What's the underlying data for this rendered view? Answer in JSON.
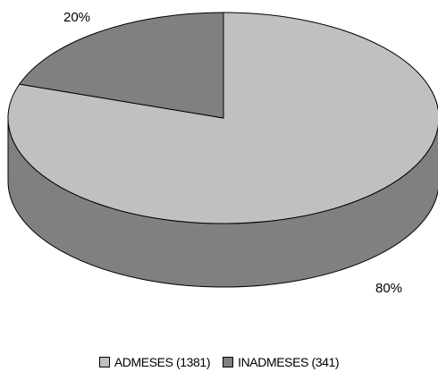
{
  "chart_data": {
    "type": "pie",
    "style": "3d",
    "slices": [
      {
        "label": "ADMESES (1381)",
        "value": 1381,
        "percent_label": "80%",
        "color": "#c0c0c0",
        "side_color": "#808080"
      },
      {
        "label": "INADMESES (341)",
        "value": 341,
        "percent_label": "20%",
        "color": "#808080",
        "side_color": "#666666"
      }
    ],
    "legend_placement": "bottom"
  }
}
